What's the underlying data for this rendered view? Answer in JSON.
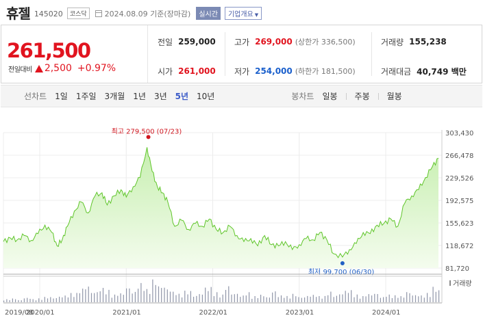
{
  "header": {
    "name": "휴젤",
    "code": "145020",
    "market": "코스닥",
    "date_text": "2024.08.09",
    "basis": "기준(장마감)",
    "realtime_label": "실시간",
    "company_label": "기업개요"
  },
  "quote": {
    "price": "261,500",
    "change_label": "전일대비",
    "change_value": "2,500",
    "change_pct": "+0.97%",
    "prev_close_label": "전일",
    "prev_close": "259,000",
    "high_label": "고가",
    "high": "269,000",
    "upper_limit": "(상한가 336,500)",
    "volume_label": "거래량",
    "volume": "155,238",
    "open_label": "시가",
    "open": "261,000",
    "low_label": "저가",
    "low": "254,000",
    "lower_limit": "(하한가 181,500)",
    "amount_label": "거래대금",
    "amount": "40,749 백만"
  },
  "tabs": {
    "line_title": "선차트",
    "line_periods": [
      "1일",
      "1주일",
      "3개월",
      "1년",
      "3년",
      "5년",
      "10년"
    ],
    "active_index": 5,
    "candle_title": "봉차트",
    "candle_periods": [
      "일봉",
      "주봉",
      "월봉"
    ]
  },
  "chart_data": {
    "type": "area",
    "y_ticks": [
      303430,
      266478,
      229526,
      192575,
      155623,
      118672,
      81720
    ],
    "y_tick_labels": [
      "303,430",
      "266,478",
      "229,526",
      "192,575",
      "155,623",
      "118,672",
      "81,720"
    ],
    "ylim": [
      81720,
      303430
    ],
    "x_tick_labels": [
      "2019/08",
      "2020/01",
      "2021/01",
      "2022/01",
      "2023/01",
      "2024/01"
    ],
    "x_ticks": [
      2019.58,
      2020.0,
      2021.0,
      2022.0,
      2023.0,
      2024.0
    ],
    "xlim": [
      2019.58,
      2024.61
    ],
    "series": [
      {
        "x": [
          2019.58,
          2019.66,
          2019.74,
          2019.82,
          2019.9,
          2019.98,
          2020.06,
          2020.14,
          2020.2,
          2020.26,
          2020.32,
          2020.4,
          2020.48,
          2020.56,
          2020.64,
          2020.72,
          2020.78,
          2020.86,
          2020.94,
          2021.0,
          2021.08,
          2021.16,
          2021.24,
          2021.3,
          2021.36,
          2021.42,
          2021.48,
          2021.56,
          2021.64,
          2021.72,
          2021.8,
          2021.88,
          2021.96,
          2022.04,
          2022.12,
          2022.2,
          2022.28,
          2022.36,
          2022.44,
          2022.52,
          2022.6,
          2022.68,
          2022.76,
          2022.84,
          2022.92,
          2023.0,
          2023.08,
          2023.16,
          2023.24,
          2023.32,
          2023.4,
          2023.5,
          2023.58,
          2023.66,
          2023.74,
          2023.82,
          2023.9,
          2023.98,
          2024.06,
          2024.14,
          2024.22,
          2024.3,
          2024.38,
          2024.46,
          2024.54,
          2024.61
        ],
        "values": [
          125000,
          131000,
          128000,
          135000,
          127000,
          138000,
          152000,
          140000,
          118000,
          128000,
          150000,
          175000,
          190000,
          172000,
          200000,
          205000,
          185000,
          200000,
          210000,
          198000,
          215000,
          230000,
          279500,
          240000,
          215000,
          205000,
          190000,
          150000,
          160000,
          145000,
          155000,
          150000,
          162000,
          145000,
          140000,
          150000,
          135000,
          125000,
          130000,
          118000,
          135000,
          120000,
          118000,
          125000,
          112000,
          120000,
          130000,
          128000,
          140000,
          128000,
          105000,
          99700,
          112000,
          122000,
          140000,
          138000,
          152000,
          155000,
          162000,
          150000,
          188000,
          200000,
          210000,
          230000,
          248000,
          261500
        ]
      }
    ],
    "volume_label": "거래량",
    "volume": [
      4,
      5,
      3,
      6,
      4,
      5,
      7,
      6,
      8,
      9,
      12,
      18,
      22,
      14,
      19,
      16,
      10,
      12,
      20,
      14,
      25,
      17,
      30,
      22,
      18,
      14,
      11,
      15,
      9,
      12,
      20,
      13,
      10,
      22,
      12,
      9,
      13,
      8,
      10,
      7,
      15,
      9,
      8,
      11,
      7,
      9,
      10,
      8,
      14,
      9,
      12,
      16,
      10,
      8,
      11,
      12,
      7,
      10,
      9,
      8,
      14,
      10,
      9,
      12,
      20,
      16
    ],
    "annotations": {
      "high": {
        "text": "최고 279,500 (07/23)",
        "x": 2021.24,
        "y": 279500
      },
      "low": {
        "text": "최저 99,700 (06/30)",
        "x": 2023.5,
        "y": 99700
      }
    },
    "colors": {
      "line": "#5fc52a",
      "fill_top": "#c7efb0",
      "fill_bottom": "#f4fcee",
      "volume": "#8f95a8",
      "high": "#d0161f",
      "low": "#2160c4"
    }
  }
}
